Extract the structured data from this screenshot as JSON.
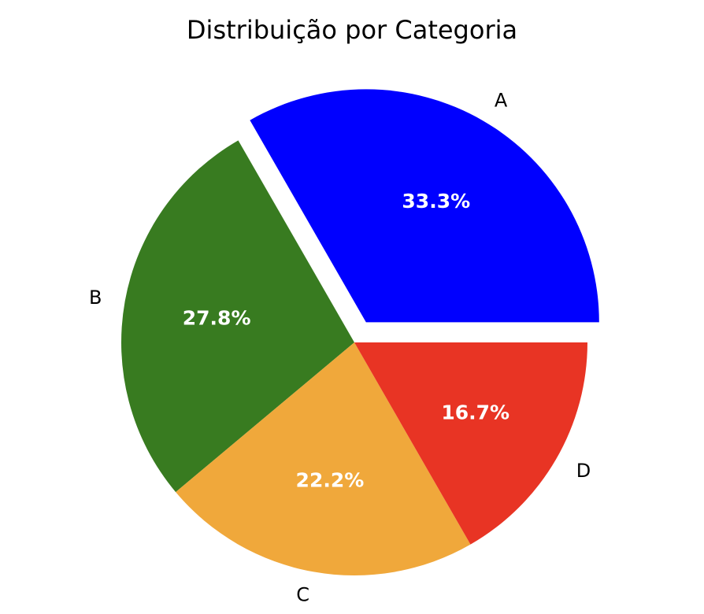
{
  "chart_data": {
    "type": "pie",
    "title": "Distribuição por Categoria",
    "categories": [
      "A",
      "B",
      "C",
      "D"
    ],
    "values": [
      33.3,
      27.8,
      22.2,
      16.7
    ],
    "percent_labels": [
      "33.3%",
      "27.8%",
      "22.2%",
      "16.7%"
    ],
    "colors": [
      "#0000ff",
      "#387b20",
      "#f0a83b",
      "#e83424"
    ],
    "explode": [
      0.1,
      0,
      0,
      0
    ],
    "start_angle_deg": 0,
    "direction": "counterclockwise",
    "legend": "none"
  }
}
